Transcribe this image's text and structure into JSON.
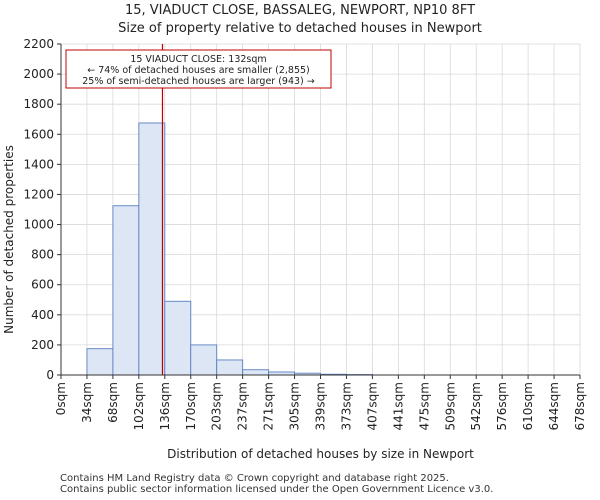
{
  "chart_data": {
    "type": "histogram",
    "title": "15, VIADUCT CLOSE, BASSALEG, NEWPORT, NP10 8FT",
    "subtitle": "Size of property relative to detached houses in Newport",
    "xlabel": "Distribution of detached houses by size in Newport",
    "ylabel": "Number of detached properties",
    "ylim": [
      0,
      2200
    ],
    "yticks": [
      0,
      200,
      400,
      600,
      800,
      1000,
      1200,
      1400,
      1600,
      1800,
      2000,
      2200
    ],
    "bin_labels": [
      "0sqm",
      "34sqm",
      "68sqm",
      "102sqm",
      "136sqm",
      "170sqm",
      "203sqm",
      "237sqm",
      "271sqm",
      "305sqm",
      "339sqm",
      "373sqm",
      "407sqm",
      "441sqm",
      "475sqm",
      "509sqm",
      "542sqm",
      "576sqm",
      "610sqm",
      "644sqm",
      "678sqm"
    ],
    "values": [
      0,
      175,
      1125,
      1675,
      490,
      200,
      100,
      35,
      20,
      12,
      5,
      3,
      0,
      0,
      0,
      0,
      0,
      0,
      0,
      0
    ],
    "bar_color": "#dce6f5",
    "bar_edge": "#5b7fc0",
    "grid": true,
    "marker": {
      "bin_position": 3.91,
      "color": "#c00000",
      "label_line1": "15 VIADUCT CLOSE: 132sqm",
      "label_line2": "← 74% of detached houses are smaller (2,855)",
      "label_line3": "25% of semi-detached houses are larger (943) →"
    }
  },
  "footer": {
    "line1": "Contains HM Land Registry data © Crown copyright and database right 2025.",
    "line2": "Contains public sector information licensed under the Open Government Licence v3.0."
  }
}
